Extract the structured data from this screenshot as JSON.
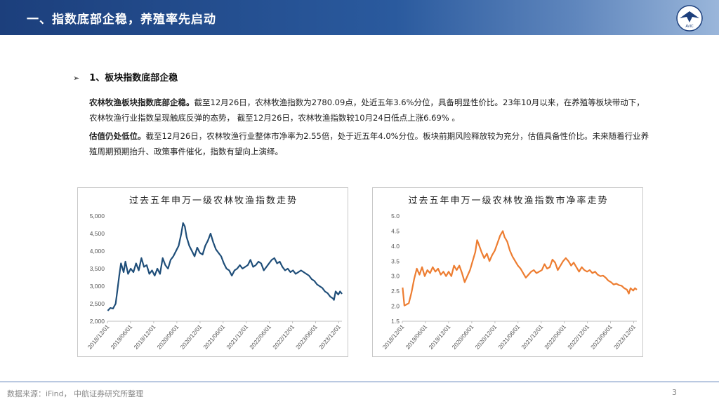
{
  "header": {
    "title": "一、指数底部企稳，养殖率先启动",
    "logo_text": "AVIC"
  },
  "section": {
    "bullet": "➢",
    "heading": "1、板块指数底部企稳"
  },
  "para1": {
    "bold": "农林牧渔板块指数底部企稳。",
    "text": "截至12月26日，农林牧渔指数为2780.09点，处近五年3.6%分位，具备明显性价比。23年10月以来，在养殖等板块带动下，农林牧渔行业指数呈现触底反弹的态势， 截至12月26日，农林牧渔指数较10月24日低点上涨6.69% 。"
  },
  "para2": {
    "bold": "估值仍处低位。",
    "text": "截至12月26日，农林牧渔行业整体市净率为2.55倍，处于近五年4.0%分位。板块前期风险释放较为充分，估值具备性价比。未来随着行业养殖周期预期抬升、政策事件催化，指数有望向上演绎。"
  },
  "footer": {
    "source": "数据来源：iFind， 中航证券研究所整理",
    "page": "3"
  },
  "chart_data": [
    {
      "type": "line",
      "title": "过去五年申万一级农林牧渔指数走势",
      "color": "#1f4e79",
      "x_start": "2018-12-01",
      "x_end": "2023-12-26",
      "x_ticks": [
        "2018/12/01",
        "2019/06/01",
        "2019/12/01",
        "2020/06/01",
        "2020/12/01",
        "2021/06/01",
        "2021/12/01",
        "2022/06/01",
        "2022/12/01",
        "2023/06/01",
        "2023/12/01"
      ],
      "y_ticks": [
        "2,000",
        "2,500",
        "3,000",
        "3,500",
        "4,000",
        "4,500",
        "5,000"
      ],
      "ylim": [
        2000,
        5000
      ],
      "points": [
        [
          "2018-12-03",
          2300
        ],
        [
          "2018-12-24",
          2380
        ],
        [
          "2019-01-14",
          2360
        ],
        [
          "2019-02-04",
          2500
        ],
        [
          "2019-02-18",
          2900
        ],
        [
          "2019-03-04",
          3300
        ],
        [
          "2019-03-18",
          3650
        ],
        [
          "2019-04-08",
          3400
        ],
        [
          "2019-04-22",
          3700
        ],
        [
          "2019-05-13",
          3350
        ],
        [
          "2019-06-03",
          3500
        ],
        [
          "2019-06-24",
          3400
        ],
        [
          "2019-07-15",
          3650
        ],
        [
          "2019-08-05",
          3450
        ],
        [
          "2019-08-26",
          3800
        ],
        [
          "2019-09-16",
          3550
        ],
        [
          "2019-10-07",
          3600
        ],
        [
          "2019-10-28",
          3350
        ],
        [
          "2019-11-18",
          3450
        ],
        [
          "2019-12-09",
          3300
        ],
        [
          "2019-12-30",
          3500
        ],
        [
          "2020-01-20",
          3350
        ],
        [
          "2020-02-10",
          3800
        ],
        [
          "2020-03-02",
          3600
        ],
        [
          "2020-03-23",
          3500
        ],
        [
          "2020-04-13",
          3750
        ],
        [
          "2020-05-04",
          3850
        ],
        [
          "2020-05-25",
          4000
        ],
        [
          "2020-06-15",
          4150
        ],
        [
          "2020-07-06",
          4500
        ],
        [
          "2020-07-20",
          4800
        ],
        [
          "2020-08-03",
          4700
        ],
        [
          "2020-08-17",
          4400
        ],
        [
          "2020-09-07",
          4150
        ],
        [
          "2020-09-28",
          4000
        ],
        [
          "2020-10-19",
          3850
        ],
        [
          "2020-11-09",
          4100
        ],
        [
          "2020-11-30",
          3950
        ],
        [
          "2020-12-21",
          3900
        ],
        [
          "2021-01-11",
          4150
        ],
        [
          "2021-02-01",
          4300
        ],
        [
          "2021-02-22",
          4500
        ],
        [
          "2021-03-15",
          4250
        ],
        [
          "2021-04-05",
          4050
        ],
        [
          "2021-04-26",
          3950
        ],
        [
          "2021-05-17",
          3850
        ],
        [
          "2021-06-07",
          3650
        ],
        [
          "2021-06-28",
          3500
        ],
        [
          "2021-07-19",
          3450
        ],
        [
          "2021-08-09",
          3300
        ],
        [
          "2021-08-30",
          3450
        ],
        [
          "2021-09-20",
          3500
        ],
        [
          "2021-10-11",
          3600
        ],
        [
          "2021-11-01",
          3500
        ],
        [
          "2021-11-22",
          3550
        ],
        [
          "2021-12-13",
          3600
        ],
        [
          "2022-01-03",
          3750
        ],
        [
          "2022-01-24",
          3550
        ],
        [
          "2022-02-14",
          3600
        ],
        [
          "2022-03-07",
          3700
        ],
        [
          "2022-03-28",
          3650
        ],
        [
          "2022-04-18",
          3450
        ],
        [
          "2022-05-09",
          3550
        ],
        [
          "2022-05-30",
          3650
        ],
        [
          "2022-06-20",
          3750
        ],
        [
          "2022-07-11",
          3800
        ],
        [
          "2022-08-01",
          3650
        ],
        [
          "2022-08-22",
          3700
        ],
        [
          "2022-09-12",
          3550
        ],
        [
          "2022-10-03",
          3450
        ],
        [
          "2022-10-24",
          3500
        ],
        [
          "2022-11-14",
          3400
        ],
        [
          "2022-12-05",
          3450
        ],
        [
          "2022-12-26",
          3350
        ],
        [
          "2023-01-16",
          3400
        ],
        [
          "2023-02-06",
          3450
        ],
        [
          "2023-02-27",
          3400
        ],
        [
          "2023-03-20",
          3350
        ],
        [
          "2023-04-10",
          3300
        ],
        [
          "2023-05-01",
          3200
        ],
        [
          "2023-05-22",
          3150
        ],
        [
          "2023-06-12",
          3050
        ],
        [
          "2023-07-03",
          3000
        ],
        [
          "2023-07-24",
          2950
        ],
        [
          "2023-08-14",
          2850
        ],
        [
          "2023-09-04",
          2800
        ],
        [
          "2023-09-25",
          2700
        ],
        [
          "2023-10-16",
          2650
        ],
        [
          "2023-10-24",
          2606
        ],
        [
          "2023-11-06",
          2850
        ],
        [
          "2023-11-27",
          2760
        ],
        [
          "2023-12-11",
          2850
        ],
        [
          "2023-12-26",
          2780
        ]
      ]
    },
    {
      "type": "line",
      "title": "过去五年申万一级农林牧渔指数市净率走势",
      "color": "#ed7d31",
      "x_start": "2018-12-01",
      "x_end": "2023-12-26",
      "x_ticks": [
        "2018/12/01",
        "2019/06/01",
        "2019/12/01",
        "2020/06/01",
        "2020/12/01",
        "2021/06/01",
        "2021/12/01",
        "2022/06/01",
        "2022/12/01",
        "2023/06/01",
        "2023/12/01"
      ],
      "y_ticks": [
        "1.5",
        "2.0",
        "2.5",
        "3.0",
        "3.5",
        "4.0",
        "4.5",
        "5.0"
      ],
      "ylim": [
        1.5,
        5.0
      ],
      "points": [
        [
          "2018-12-03",
          2.62
        ],
        [
          "2018-12-17",
          2.02
        ],
        [
          "2018-12-31",
          2.05
        ],
        [
          "2019-01-21",
          2.1
        ],
        [
          "2019-02-11",
          2.45
        ],
        [
          "2019-03-04",
          2.9
        ],
        [
          "2019-03-25",
          3.25
        ],
        [
          "2019-04-15",
          3.05
        ],
        [
          "2019-05-06",
          3.3
        ],
        [
          "2019-05-27",
          3.0
        ],
        [
          "2019-06-17",
          3.2
        ],
        [
          "2019-07-08",
          3.1
        ],
        [
          "2019-07-29",
          3.3
        ],
        [
          "2019-08-19",
          3.15
        ],
        [
          "2019-09-09",
          3.25
        ],
        [
          "2019-09-30",
          3.05
        ],
        [
          "2019-10-21",
          3.15
        ],
        [
          "2019-11-11",
          3.0
        ],
        [
          "2019-12-02",
          3.15
        ],
        [
          "2019-12-23",
          3.0
        ],
        [
          "2020-01-13",
          3.35
        ],
        [
          "2020-02-03",
          3.2
        ],
        [
          "2020-02-24",
          3.35
        ],
        [
          "2020-03-16",
          3.1
        ],
        [
          "2020-04-06",
          2.8
        ],
        [
          "2020-04-27",
          3.0
        ],
        [
          "2020-05-18",
          3.2
        ],
        [
          "2020-06-08",
          3.5
        ],
        [
          "2020-06-29",
          3.8
        ],
        [
          "2020-07-13",
          4.2
        ],
        [
          "2020-07-27",
          4.05
        ],
        [
          "2020-08-17",
          3.8
        ],
        [
          "2020-09-07",
          3.6
        ],
        [
          "2020-09-28",
          3.75
        ],
        [
          "2020-10-19",
          3.5
        ],
        [
          "2020-11-09",
          3.7
        ],
        [
          "2020-11-30",
          3.85
        ],
        [
          "2020-12-21",
          4.1
        ],
        [
          "2021-01-11",
          4.35
        ],
        [
          "2021-02-01",
          4.5
        ],
        [
          "2021-02-15",
          4.3
        ],
        [
          "2021-03-08",
          4.15
        ],
        [
          "2021-03-29",
          3.85
        ],
        [
          "2021-04-19",
          3.65
        ],
        [
          "2021-05-10",
          3.5
        ],
        [
          "2021-05-31",
          3.35
        ],
        [
          "2021-06-21",
          3.25
        ],
        [
          "2021-07-12",
          3.1
        ],
        [
          "2021-08-02",
          2.95
        ],
        [
          "2021-08-23",
          3.05
        ],
        [
          "2021-09-13",
          3.15
        ],
        [
          "2021-10-04",
          3.2
        ],
        [
          "2021-10-25",
          3.1
        ],
        [
          "2021-11-15",
          3.15
        ],
        [
          "2021-12-06",
          3.2
        ],
        [
          "2021-12-27",
          3.4
        ],
        [
          "2022-01-17",
          3.25
        ],
        [
          "2022-02-07",
          3.3
        ],
        [
          "2022-02-28",
          3.55
        ],
        [
          "2022-03-21",
          3.45
        ],
        [
          "2022-04-11",
          3.2
        ],
        [
          "2022-05-02",
          3.35
        ],
        [
          "2022-05-23",
          3.5
        ],
        [
          "2022-06-13",
          3.6
        ],
        [
          "2022-07-04",
          3.5
        ],
        [
          "2022-07-25",
          3.35
        ],
        [
          "2022-08-15",
          3.45
        ],
        [
          "2022-09-05",
          3.3
        ],
        [
          "2022-09-26",
          3.15
        ],
        [
          "2022-10-17",
          3.3
        ],
        [
          "2022-11-07",
          3.2
        ],
        [
          "2022-11-28",
          3.15
        ],
        [
          "2022-12-19",
          3.2
        ],
        [
          "2023-01-09",
          3.1
        ],
        [
          "2023-01-30",
          3.15
        ],
        [
          "2023-02-20",
          3.05
        ],
        [
          "2023-03-13",
          3.0
        ],
        [
          "2023-04-03",
          3.02
        ],
        [
          "2023-04-24",
          2.95
        ],
        [
          "2023-05-15",
          2.85
        ],
        [
          "2023-06-05",
          2.8
        ],
        [
          "2023-06-26",
          2.72
        ],
        [
          "2023-07-17",
          2.75
        ],
        [
          "2023-08-07",
          2.7
        ],
        [
          "2023-08-28",
          2.68
        ],
        [
          "2023-09-18",
          2.6
        ],
        [
          "2023-10-09",
          2.55
        ],
        [
          "2023-10-24",
          2.42
        ],
        [
          "2023-11-06",
          2.6
        ],
        [
          "2023-11-27",
          2.52
        ],
        [
          "2023-12-11",
          2.6
        ],
        [
          "2023-12-26",
          2.55
        ]
      ]
    }
  ]
}
